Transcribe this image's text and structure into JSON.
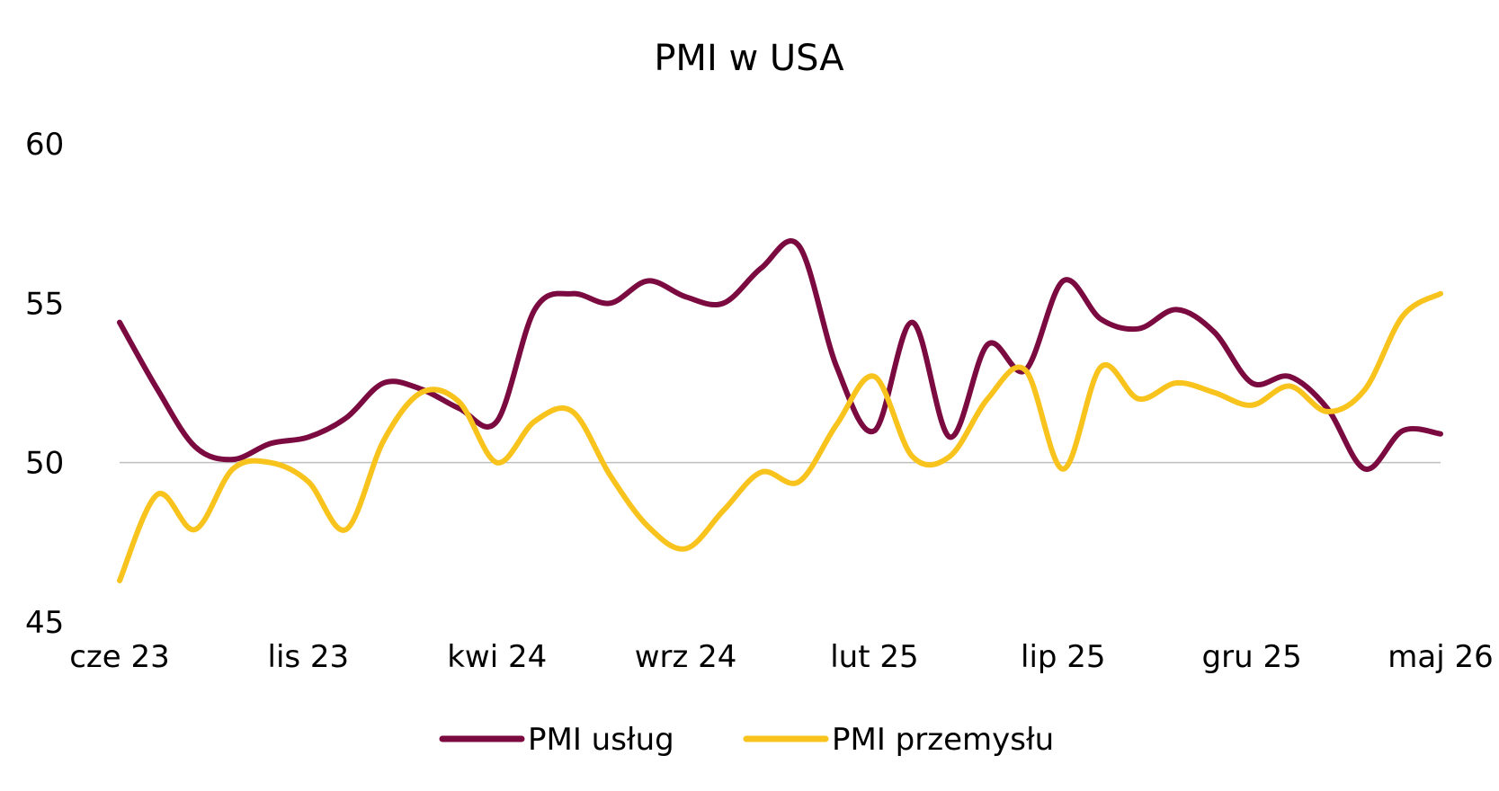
{
  "chart_data": {
    "type": "line",
    "title": "PMI w USA",
    "xlabel": "",
    "ylabel": "",
    "ylim": [
      45,
      60
    ],
    "yticks": [
      "45",
      "50",
      "55",
      "60"
    ],
    "reference_line": 50,
    "x_tick_labels": [
      "cze 23",
      "lis 23",
      "kwi 24",
      "wrz 24",
      "lut 25",
      "lip 25",
      "gru 25",
      "maj 26"
    ],
    "x": [
      "cze 23",
      "lip 23",
      "sie 23",
      "wrz 23",
      "paź 23",
      "lis 23",
      "gru 23",
      "sty 24",
      "lut 24",
      "mar 24",
      "kwi 24",
      "maj 24",
      "cze 24",
      "lip 24",
      "sie 24",
      "wrz 24",
      "paź 24",
      "lis 24",
      "gru 24",
      "sty 25",
      "lut 25",
      "mar 25",
      "kwi 25",
      "maj 25",
      "cze 25",
      "lip 25",
      "sie 25",
      "wrz 25",
      "paź 25",
      "lis 25",
      "gru 25",
      "sty 26",
      "lut 26",
      "mar 26",
      "kwi 26",
      "maj 26"
    ],
    "grid": false,
    "legend_position": "bottom",
    "series": [
      {
        "name": "PMI usług",
        "color": "#7A0A3F",
        "values": [
          54.4,
          52.3,
          50.5,
          50.1,
          50.6,
          50.8,
          51.4,
          52.5,
          52.3,
          51.7,
          51.3,
          54.8,
          55.3,
          55.0,
          55.7,
          55.2,
          55.0,
          56.1,
          56.8,
          53.0,
          51.0,
          54.4,
          50.8,
          53.7,
          52.9,
          55.7,
          54.5,
          54.2,
          54.8,
          54.1,
          52.5,
          52.7,
          51.7,
          49.8,
          51.0,
          50.9
        ]
      },
      {
        "name": "PMI przemysłu",
        "color": "#F8C31C",
        "values": [
          46.3,
          49.0,
          47.9,
          49.8,
          50.0,
          49.4,
          47.9,
          50.7,
          52.2,
          51.9,
          50.0,
          51.3,
          51.6,
          49.6,
          48.0,
          47.3,
          48.5,
          49.7,
          49.4,
          51.2,
          52.7,
          50.2,
          50.2,
          52.0,
          52.9,
          49.8,
          53.0,
          52.0,
          52.5,
          52.2,
          51.8,
          52.4,
          51.6,
          52.3,
          54.6,
          55.3
        ]
      }
    ]
  }
}
